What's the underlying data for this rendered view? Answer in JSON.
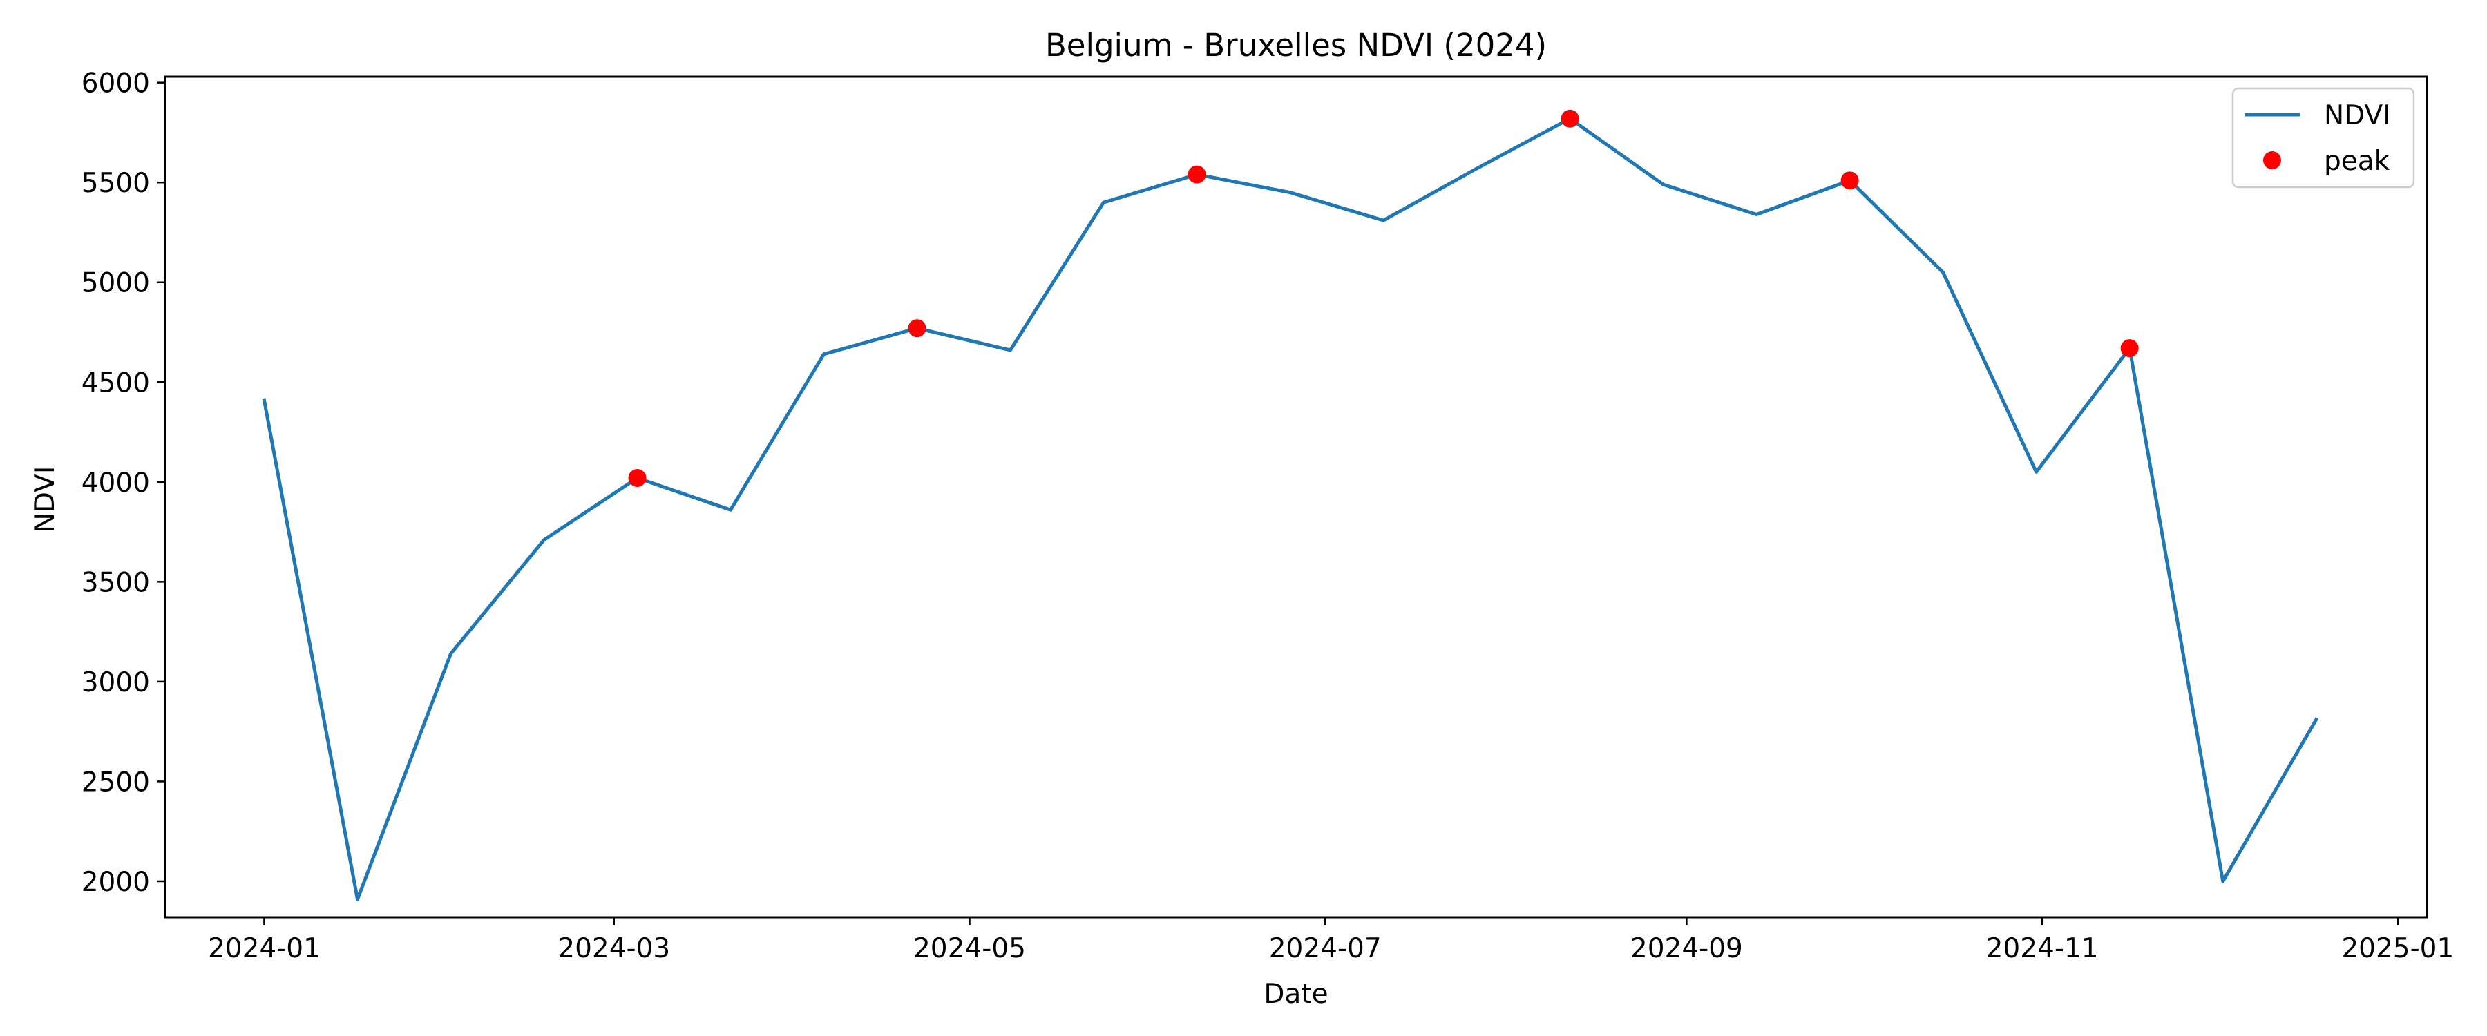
{
  "chart_data": {
    "type": "line",
    "title": "Belgium - Bruxelles NDVI (2024)",
    "xlabel": "Date",
    "ylabel": "NDVI",
    "xlim": [
      "2023-12-15",
      "2025-01-06"
    ],
    "ylim": [
      1820,
      6030
    ],
    "x_ticks": [
      "2024-01-01",
      "2024-03-01",
      "2024-05-01",
      "2024-07-01",
      "2024-09-01",
      "2024-11-01",
      "2025-01-01"
    ],
    "x_tick_labels": [
      "2024-01",
      "2024-03",
      "2024-05",
      "2024-07",
      "2024-09",
      "2024-11",
      "2025-01"
    ],
    "y_ticks": [
      2000,
      2500,
      3000,
      3500,
      4000,
      4500,
      5000,
      5500,
      6000
    ],
    "y_tick_labels": [
      "2000",
      "2500",
      "3000",
      "3500",
      "4000",
      "4500",
      "5000",
      "5500",
      "6000"
    ],
    "grid": false,
    "legend_position": "top-right",
    "series": [
      {
        "name": "NDVI",
        "kind": "line",
        "color": "#1f77b4",
        "x": [
          "2024-01-01",
          "2024-01-17",
          "2024-02-02",
          "2024-02-18",
          "2024-03-05",
          "2024-03-21",
          "2024-04-06",
          "2024-04-22",
          "2024-05-08",
          "2024-05-24",
          "2024-06-09",
          "2024-06-25",
          "2024-07-11",
          "2024-07-27",
          "2024-08-12",
          "2024-08-28",
          "2024-09-13",
          "2024-09-29",
          "2024-10-15",
          "2024-10-31",
          "2024-11-16",
          "2024-12-02",
          "2024-12-18"
        ],
        "y": [
          4410,
          1910,
          3140,
          3710,
          4020,
          3860,
          4640,
          4770,
          4660,
          5400,
          5540,
          5450,
          5310,
          5570,
          5820,
          5490,
          5340,
          5510,
          5050,
          4050,
          4670,
          2000,
          2810
        ]
      },
      {
        "name": "peak",
        "kind": "scatter",
        "color": "#ff0000",
        "x": [
          "2024-03-05",
          "2024-04-22",
          "2024-06-09",
          "2024-08-12",
          "2024-09-29",
          "2024-11-16"
        ],
        "y": [
          4020,
          4770,
          5540,
          5820,
          5510,
          4670
        ]
      }
    ]
  }
}
